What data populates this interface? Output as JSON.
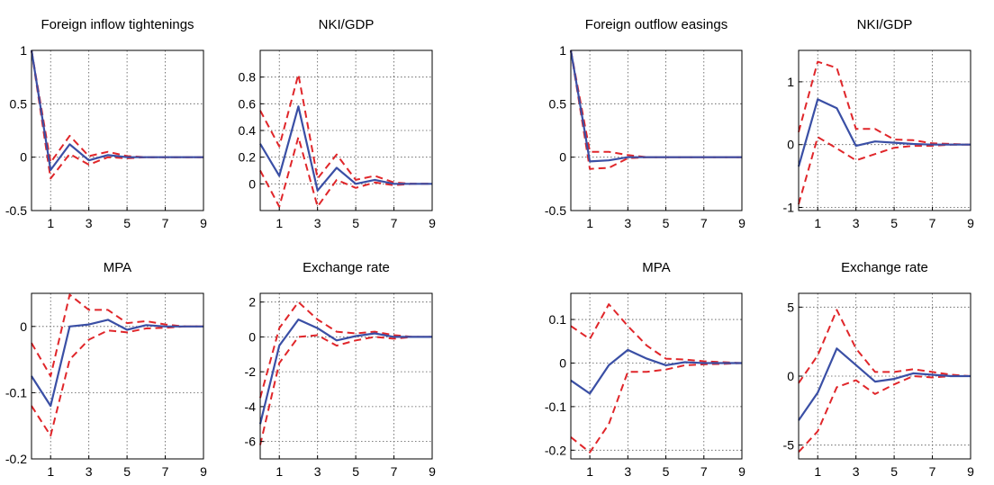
{
  "style": {
    "mean_color": "#3a4fa5",
    "band_color": "#e0262a"
  },
  "chart_data": [
    {
      "type": "line",
      "title": "Foreign inflow tightenings",
      "x": [
        0,
        1,
        2,
        3,
        4,
        5,
        6,
        7,
        8,
        9
      ],
      "xlim": [
        0,
        9
      ],
      "ylim": [
        -0.5,
        1
      ],
      "xticks": [
        "1",
        "3",
        "5",
        "7",
        "9"
      ],
      "xtick_values": [
        1,
        3,
        5,
        7,
        9
      ],
      "yticks": [
        "-0.5",
        "0",
        "0.5",
        "1"
      ],
      "ytick_values": [
        -0.5,
        0,
        0.5,
        1
      ],
      "series": [
        {
          "role": "mean",
          "style": "solid",
          "values": [
            1,
            -0.12,
            0.12,
            -0.03,
            0.02,
            0,
            0,
            0,
            0,
            0
          ]
        },
        {
          "role": "upper",
          "style": "dashed",
          "values": [
            1,
            -0.05,
            0.2,
            0.01,
            0.05,
            0.01,
            0,
            0,
            0,
            0
          ]
        },
        {
          "role": "lower",
          "style": "dashed",
          "values": [
            1,
            -0.2,
            0.03,
            -0.07,
            0,
            -0.01,
            0,
            0,
            0,
            0
          ]
        }
      ]
    },
    {
      "type": "line",
      "title": "NKI/GDP",
      "x": [
        0,
        1,
        2,
        3,
        4,
        5,
        6,
        7,
        8,
        9
      ],
      "xlim": [
        0,
        9
      ],
      "ylim": [
        -0.2,
        1
      ],
      "xticks": [
        "1",
        "3",
        "5",
        "7",
        "9"
      ],
      "xtick_values": [
        1,
        3,
        5,
        7,
        9
      ],
      "yticks": [
        "0",
        "0.2",
        "0.4",
        "0.6",
        "0.8"
      ],
      "ytick_values": [
        0,
        0.2,
        0.4,
        0.6,
        0.8
      ],
      "series": [
        {
          "role": "mean",
          "style": "solid",
          "values": [
            0.3,
            0.06,
            0.58,
            -0.05,
            0.12,
            0,
            0.03,
            0,
            0,
            0
          ]
        },
        {
          "role": "upper",
          "style": "dashed",
          "values": [
            0.55,
            0.28,
            0.82,
            0.04,
            0.22,
            0.03,
            0.06,
            0.01,
            0,
            0
          ]
        },
        {
          "role": "lower",
          "style": "dashed",
          "values": [
            0.1,
            -0.17,
            0.35,
            -0.17,
            0.03,
            -0.03,
            0.01,
            -0.01,
            0,
            0
          ]
        }
      ]
    },
    {
      "type": "line",
      "title": "Foreign outflow easings",
      "x": [
        0,
        1,
        2,
        3,
        4,
        5,
        6,
        7,
        8,
        9
      ],
      "xlim": [
        0,
        9
      ],
      "ylim": [
        -0.5,
        1
      ],
      "xticks": [
        "1",
        "3",
        "5",
        "7",
        "9"
      ],
      "xtick_values": [
        1,
        3,
        5,
        7,
        9
      ],
      "yticks": [
        "-0.5",
        "0",
        "0.5",
        "1"
      ],
      "ytick_values": [
        -0.5,
        0,
        0.5,
        1
      ],
      "series": [
        {
          "role": "mean",
          "style": "solid",
          "values": [
            1,
            -0.04,
            -0.03,
            0,
            0,
            0,
            0,
            0,
            0,
            0
          ]
        },
        {
          "role": "upper",
          "style": "dashed",
          "values": [
            1,
            0.05,
            0.05,
            0.02,
            0,
            0,
            0,
            0,
            0,
            0
          ]
        },
        {
          "role": "lower",
          "style": "dashed",
          "values": [
            1,
            -0.11,
            -0.1,
            -0.01,
            0,
            0,
            0,
            0,
            0,
            0
          ]
        }
      ]
    },
    {
      "type": "line",
      "title": "NKI/GDP",
      "x": [
        0,
        1,
        2,
        3,
        4,
        5,
        6,
        7,
        8,
        9
      ],
      "xlim": [
        0,
        9
      ],
      "ylim": [
        -1.05,
        1.5
      ],
      "xticks": [
        "1",
        "3",
        "5",
        "7",
        "9"
      ],
      "xtick_values": [
        1,
        3,
        5,
        7,
        9
      ],
      "yticks": [
        "-1",
        "0",
        "1"
      ],
      "ytick_values": [
        -1,
        0,
        1
      ],
      "series": [
        {
          "role": "mean",
          "style": "solid",
          "values": [
            -0.35,
            0.72,
            0.58,
            -0.02,
            0.05,
            0.03,
            0.01,
            0,
            0,
            0
          ]
        },
        {
          "role": "upper",
          "style": "dashed",
          "values": [
            0.2,
            1.32,
            1.22,
            0.25,
            0.25,
            0.08,
            0.07,
            0.02,
            0.01,
            0
          ]
        },
        {
          "role": "lower",
          "style": "dashed",
          "values": [
            -0.95,
            0.12,
            -0.06,
            -0.25,
            -0.15,
            -0.05,
            -0.02,
            -0.02,
            0,
            0
          ]
        }
      ]
    },
    {
      "type": "line",
      "title": "MPA",
      "x": [
        0,
        1,
        2,
        3,
        4,
        5,
        6,
        7,
        8,
        9
      ],
      "xlim": [
        0,
        9
      ],
      "ylim": [
        -0.2,
        0.05
      ],
      "xticks": [
        "1",
        "3",
        "5",
        "7",
        "9"
      ],
      "xtick_values": [
        1,
        3,
        5,
        7,
        9
      ],
      "yticks": [
        "-0.2",
        "-0.1",
        "0"
      ],
      "ytick_values": [
        -0.2,
        -0.1,
        0
      ],
      "series": [
        {
          "role": "mean",
          "style": "solid",
          "values": [
            -0.075,
            -0.12,
            0,
            0.003,
            0.01,
            -0.005,
            0.002,
            0,
            0,
            0
          ]
        },
        {
          "role": "upper",
          "style": "dashed",
          "values": [
            -0.025,
            -0.075,
            0.048,
            0.025,
            0.025,
            0.005,
            0.008,
            0.003,
            0,
            0
          ]
        },
        {
          "role": "lower",
          "style": "dashed",
          "values": [
            -0.12,
            -0.165,
            -0.05,
            -0.02,
            -0.006,
            -0.009,
            -0.003,
            -0.002,
            0,
            0
          ]
        }
      ]
    },
    {
      "type": "line",
      "title": "Exchange rate",
      "x": [
        0,
        1,
        2,
        3,
        4,
        5,
        6,
        7,
        8,
        9
      ],
      "xlim": [
        0,
        9
      ],
      "ylim": [
        -7,
        2.5
      ],
      "xticks": [
        "1",
        "3",
        "5",
        "7",
        "9"
      ],
      "xtick_values": [
        1,
        3,
        5,
        7,
        9
      ],
      "yticks": [
        "-6",
        "-4",
        "-2",
        "0",
        "2"
      ],
      "ytick_values": [
        -6,
        -4,
        -2,
        0,
        2
      ],
      "series": [
        {
          "role": "mean",
          "style": "solid",
          "values": [
            -5,
            -0.5,
            1,
            0.5,
            -0.2,
            0.05,
            0.2,
            0,
            0,
            0
          ]
        },
        {
          "role": "upper",
          "style": "dashed",
          "values": [
            -3.5,
            0.5,
            2,
            1,
            0.3,
            0.2,
            0.3,
            0.1,
            0,
            0
          ]
        },
        {
          "role": "lower",
          "style": "dashed",
          "values": [
            -6.2,
            -1.5,
            0,
            0.1,
            -0.5,
            -0.2,
            0,
            -0.1,
            0,
            0
          ]
        }
      ]
    },
    {
      "type": "line",
      "title": "MPA",
      "x": [
        0,
        1,
        2,
        3,
        4,
        5,
        6,
        7,
        8,
        9
      ],
      "xlim": [
        0,
        9
      ],
      "ylim": [
        -0.22,
        0.16
      ],
      "xticks": [
        "1",
        "3",
        "5",
        "7",
        "9"
      ],
      "xtick_values": [
        1,
        3,
        5,
        7,
        9
      ],
      "yticks": [
        "-0.2",
        "-0.1",
        "0",
        "0.1"
      ],
      "ytick_values": [
        -0.2,
        -0.1,
        0,
        0.1
      ],
      "series": [
        {
          "role": "mean",
          "style": "solid",
          "values": [
            -0.04,
            -0.07,
            -0.005,
            0.03,
            0.01,
            -0.005,
            0.002,
            0,
            0,
            0
          ]
        },
        {
          "role": "upper",
          "style": "dashed",
          "values": [
            0.085,
            0.055,
            0.135,
            0.085,
            0.04,
            0.01,
            0.008,
            0.004,
            0.002,
            0
          ]
        },
        {
          "role": "lower",
          "style": "dashed",
          "values": [
            -0.17,
            -0.205,
            -0.14,
            -0.02,
            -0.02,
            -0.015,
            -0.005,
            -0.003,
            -0.002,
            0
          ]
        }
      ]
    },
    {
      "type": "line",
      "title": "Exchange rate",
      "x": [
        0,
        1,
        2,
        3,
        4,
        5,
        6,
        7,
        8,
        9
      ],
      "xlim": [
        0,
        9
      ],
      "ylim": [
        -6,
        6
      ],
      "xticks": [
        "1",
        "3",
        "5",
        "7",
        "9"
      ],
      "xtick_values": [
        1,
        3,
        5,
        7,
        9
      ],
      "yticks": [
        "-5",
        "0",
        "5"
      ],
      "ytick_values": [
        -5,
        0,
        5
      ],
      "series": [
        {
          "role": "mean",
          "style": "solid",
          "values": [
            -3.2,
            -1.2,
            2,
            0.8,
            -0.4,
            -0.2,
            0.2,
            0.1,
            0,
            0
          ]
        },
        {
          "role": "upper",
          "style": "dashed",
          "values": [
            -0.5,
            1.5,
            4.8,
            2,
            0.3,
            0.3,
            0.5,
            0.3,
            0.1,
            0
          ]
        },
        {
          "role": "lower",
          "style": "dashed",
          "values": [
            -5.5,
            -4,
            -0.8,
            -0.3,
            -1.3,
            -0.6,
            0,
            -0.1,
            0,
            0
          ]
        }
      ]
    }
  ]
}
